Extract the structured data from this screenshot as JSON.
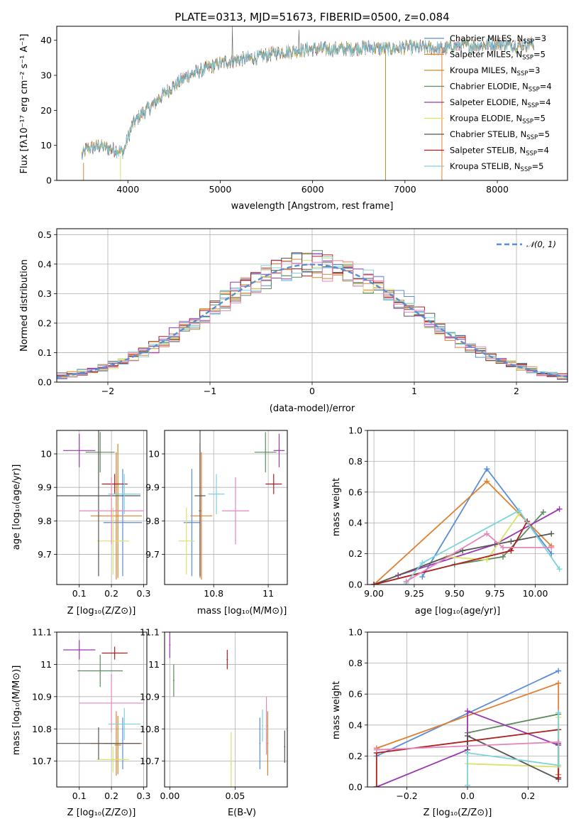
{
  "colors": [
    "#5B8DD6",
    "#E07F30",
    "#C48A2C",
    "#5D8A5E",
    "#9A36B0",
    "#D9E36A",
    "#555555",
    "#B01E1E",
    "#7ED3DB",
    "#E387BB"
  ],
  "chart_data": [
    {
      "type": "line",
      "title": "PLATE=0313, MJD=51673, FIBERID=0500, z=0.084",
      "xlabel": "wavelength [Angstrom, rest frame]",
      "ylabel": "Flux [fλ10⁻¹⁷ erg cm⁻² s⁻¹ A⁻¹]",
      "xlim": [
        3230,
        8760
      ],
      "ylim": [
        0,
        44
      ],
      "xticks": [
        4000,
        5000,
        6000,
        7000,
        8000
      ],
      "yticks": [
        0,
        10,
        20,
        30,
        40
      ],
      "continuum": {
        "x": [
          3500,
          3550,
          3700,
          3800,
          3900,
          3950,
          4050,
          4150,
          4250,
          4400,
          4500,
          4650,
          4800,
          5000,
          5200,
          5400,
          5600,
          5800,
          6000,
          6200,
          6400,
          6600,
          6800,
          7000,
          7200,
          7400,
          7600,
          7800,
          8000,
          8200,
          8400
        ],
        "y": [
          7,
          9,
          10,
          9,
          8.5,
          8,
          16,
          19,
          21,
          25,
          27,
          30,
          31.5,
          33.5,
          34.5,
          35,
          36.5,
          37,
          37.5,
          37.5,
          37.5,
          38,
          37.5,
          38,
          38,
          37.5,
          38.5,
          38.5,
          39,
          38.5,
          39
        ]
      },
      "legend_position": "top-right",
      "series": [
        {
          "name": "Chabrier MILES, N",
          "sub": "SSP",
          "suffix": "=3",
          "color": "#5B8DD6"
        },
        {
          "name": "Salpeter MILES, N",
          "sub": "SSP",
          "suffix": "=5",
          "color": "#E07F30"
        },
        {
          "name": "Kroupa MILES, N",
          "sub": "SSP",
          "suffix": "=3",
          "color": "#C48A2C"
        },
        {
          "name": "Chabrier ELODIE, N",
          "sub": "SSP",
          "suffix": "=4",
          "color": "#5D8A5E"
        },
        {
          "name": "Salpeter ELODIE, N",
          "sub": "SSP",
          "suffix": "=4",
          "color": "#9A36B0"
        },
        {
          "name": "Kroupa ELODIE, N",
          "sub": "SSP",
          "suffix": "=5",
          "color": "#D9E36A"
        },
        {
          "name": "Chabrier STELIB, N",
          "sub": "SSP",
          "suffix": "=5",
          "color": "#555555"
        },
        {
          "name": "Salpeter STELIB, N",
          "sub": "SSP",
          "suffix": "=4",
          "color": "#B01E1E"
        },
        {
          "name": "Kroupa STELIB, N",
          "sub": "SSP",
          "suffix": "=5",
          "color": "#7ED3DB"
        }
      ]
    },
    {
      "type": "histogram",
      "xlabel": "(data-model)/error",
      "ylabel": "Normed distribution",
      "xlim": [
        -2.5,
        2.5
      ],
      "ylim": [
        0,
        0.52
      ],
      "xticks": [
        -2,
        -1,
        0,
        1,
        2
      ],
      "yticks": [
        0.0,
        0.1,
        0.2,
        0.3,
        0.4,
        0.5
      ],
      "bin_width": 0.1,
      "gaussian_label": "𝒩(0, 1)",
      "gaussian_color": "#5B8DD6",
      "legend_position": "top-right"
    },
    {
      "type": "scatter",
      "name": "age-vs-Z",
      "xlabel": "Z [log₁₀(Z/Z⊙)]",
      "ylabel": "age  [log₁₀(age/yr)]",
      "xlim": [
        0.03,
        0.31
      ],
      "ylim": [
        9.61,
        10.07
      ],
      "xticks": [
        0.1,
        0.2,
        0.3
      ],
      "yticks": [
        9.7,
        9.8,
        9.9,
        10.0
      ],
      "points": [
        {
          "x": 0.235,
          "y": 9.795,
          "xerr": 0.06,
          "yerr": 0.16,
          "color": "#5B8DD6"
        },
        {
          "x": 0.215,
          "y": 9.815,
          "xerr": 0.08,
          "yerr": 0.19,
          "color": "#E07F30"
        },
        {
          "x": 0.22,
          "y": 9.83,
          "xerr": 0.01,
          "yerr": 0.2,
          "color": "#C48A2C"
        },
        {
          "x": 0.165,
          "y": 10.005,
          "xerr": 0.045,
          "yerr": 0.06,
          "color": "#5D8A5E"
        },
        {
          "x": 0.1,
          "y": 10.01,
          "xerr": 0.05,
          "yerr": 0.05,
          "color": "#9A36B0"
        },
        {
          "x": 0.205,
          "y": 9.74,
          "xerr": 0.05,
          "yerr": 0.1,
          "color": "#D9E36A"
        },
        {
          "x": 0.16,
          "y": 9.875,
          "xerr": 0.13,
          "yerr": 0.24,
          "color": "#555555"
        },
        {
          "x": 0.21,
          "y": 9.91,
          "xerr": 0.04,
          "yerr": 0.03,
          "color": "#B01E1E"
        },
        {
          "x": 0.24,
          "y": 9.88,
          "xerr": 0.05,
          "yerr": 0.06,
          "color": "#7ED3DB"
        },
        {
          "x": 0.2,
          "y": 9.83,
          "xerr": 0.1,
          "yerr": 0.1,
          "color": "#E387BB"
        }
      ]
    },
    {
      "type": "scatter",
      "name": "age-vs-mass",
      "xlabel": "mass [log₁₀(M/M⊙)]",
      "ylabel": "",
      "xlim": [
        10.62,
        11.07
      ],
      "ylim": [
        9.61,
        10.07
      ],
      "xticks": [
        10.8,
        11.0
      ],
      "yticks": [
        9.7,
        9.8,
        9.9,
        10.0
      ],
      "points": [
        {
          "x": 10.72,
          "y": 9.795,
          "xerr": 0.03,
          "yerr": 0.16,
          "color": "#5B8DD6"
        },
        {
          "x": 10.755,
          "y": 9.815,
          "xerr": 0.04,
          "yerr": 0.19,
          "color": "#E07F30"
        },
        {
          "x": 10.75,
          "y": 9.83,
          "xerr": 0.005,
          "yerr": 0.2,
          "color": "#C48A2C"
        },
        {
          "x": 10.99,
          "y": 10.005,
          "xerr": 0.04,
          "yerr": 0.06,
          "color": "#5D8A5E"
        },
        {
          "x": 11.04,
          "y": 10.01,
          "xerr": 0.02,
          "yerr": 0.05,
          "color": "#9A36B0"
        },
        {
          "x": 10.7,
          "y": 9.74,
          "xerr": 0.03,
          "yerr": 0.1,
          "color": "#D9E36A"
        },
        {
          "x": 10.75,
          "y": 9.875,
          "xerr": 0.02,
          "yerr": 0.24,
          "color": "#555555"
        },
        {
          "x": 11.02,
          "y": 9.91,
          "xerr": 0.03,
          "yerr": 0.03,
          "color": "#B01E1E"
        },
        {
          "x": 10.81,
          "y": 9.88,
          "xerr": 0.03,
          "yerr": 0.06,
          "color": "#7ED3DB"
        },
        {
          "x": 10.88,
          "y": 9.83,
          "xerr": 0.05,
          "yerr": 0.1,
          "color": "#E387BB"
        }
      ]
    },
    {
      "type": "line",
      "name": "mass-weight-vs-age",
      "xlabel": "age  [log₁₀(age/yr)]",
      "ylabel": "mass weight",
      "xlim": [
        8.96,
        10.2
      ],
      "ylim": [
        0,
        1
      ],
      "xticks": [
        9.0,
        9.25,
        9.5,
        9.75,
        10.0
      ],
      "xtick_labels": [
        "9.00",
        "9.25",
        "9.50",
        "9.75",
        "10.00"
      ],
      "yticks": [
        0.0,
        0.2,
        0.4,
        0.6,
        0.8,
        1.0
      ],
      "series": [
        {
          "color": "#5B8DD6",
          "x": [
            9.3,
            9.7,
            10.1
          ],
          "y": [
            0.05,
            0.75,
            0.2
          ]
        },
        {
          "color": "#E07F30",
          "x": [
            9.0,
            9.7,
            10.1
          ],
          "y": [
            0.0,
            0.67,
            0.25
          ]
        },
        {
          "color": "#5D8A5E",
          "x": [
            9.0,
            9.5,
            9.8,
            10.05
          ],
          "y": [
            0.0,
            0.13,
            0.18,
            0.47
          ]
        },
        {
          "color": "#9A36B0",
          "x": [
            9.15,
            9.75,
            10.15
          ],
          "y": [
            0.06,
            0.26,
            0.49
          ]
        },
        {
          "color": "#D9E36A",
          "x": [
            9.0,
            9.45,
            9.7,
            9.9
          ],
          "y": [
            0.0,
            0.18,
            0.16,
            0.46
          ]
        },
        {
          "color": "#555555",
          "x": [
            9.0,
            9.55,
            9.85,
            10.1
          ],
          "y": [
            0.0,
            0.22,
            0.28,
            0.33
          ]
        },
        {
          "color": "#B01E1E",
          "x": [
            9.0,
            9.85,
            9.95
          ],
          "y": [
            0.0,
            0.22,
            0.41
          ]
        },
        {
          "color": "#7ED3DB",
          "x": [
            9.2,
            9.3,
            9.9,
            10.15
          ],
          "y": [
            0.01,
            0.14,
            0.48,
            0.1
          ]
        },
        {
          "color": "#E387BB",
          "x": [
            9.2,
            9.7,
            9.8,
            10.1
          ],
          "y": [
            0.02,
            0.33,
            0.24,
            0.24
          ]
        }
      ]
    },
    {
      "type": "scatter",
      "name": "mass-vs-Z",
      "xlabel": "Z [log₁₀(Z/Z⊙)]",
      "ylabel": "mass [log₁₀(M/M⊙)]",
      "xlim": [
        0.03,
        0.31
      ],
      "ylim": [
        10.62,
        11.1
      ],
      "xticks": [
        0.1,
        0.2,
        0.3
      ],
      "yticks": [
        10.7,
        10.8,
        10.9,
        11.0,
        11.1
      ],
      "points": [
        {
          "x": 0.235,
          "y": 10.755,
          "xerr": 0.06,
          "yerr": 0.08,
          "color": "#5B8DD6"
        },
        {
          "x": 0.215,
          "y": 10.755,
          "xerr": 0.08,
          "yerr": 0.1,
          "color": "#E07F30"
        },
        {
          "x": 0.22,
          "y": 10.75,
          "xerr": 0.01,
          "yerr": 0.09,
          "color": "#C48A2C"
        },
        {
          "x": 0.165,
          "y": 10.98,
          "xerr": 0.07,
          "yerr": 0.05,
          "color": "#5D8A5E"
        },
        {
          "x": 0.1,
          "y": 11.045,
          "xerr": 0.05,
          "yerr": 0.03,
          "color": "#9A36B0"
        },
        {
          "x": 0.205,
          "y": 10.705,
          "xerr": 0.05,
          "yerr": 0.04,
          "color": "#D9E36A"
        },
        {
          "x": 0.16,
          "y": 10.755,
          "xerr": 0.13,
          "yerr": 0.05,
          "color": "#555555"
        },
        {
          "x": 0.21,
          "y": 11.035,
          "xerr": 0.04,
          "yerr": 0.02,
          "color": "#B01E1E"
        },
        {
          "x": 0.24,
          "y": 10.815,
          "xerr": 0.05,
          "yerr": 0.05,
          "color": "#7ED3DB"
        },
        {
          "x": 0.2,
          "y": 10.88,
          "xerr": 0.1,
          "yerr": 0.09,
          "color": "#E387BB"
        }
      ]
    },
    {
      "type": "scatter",
      "name": "mass-vs-EBV",
      "xlabel": "E(B-V)",
      "ylabel": "",
      "xlim": [
        -0.004,
        0.09
      ],
      "ylim": [
        10.62,
        11.1
      ],
      "xticks": [
        0.0,
        0.05
      ],
      "xtick_labels": [
        "0.00",
        "0.05"
      ],
      "yticks": [
        10.7,
        10.8,
        10.9,
        11.0,
        11.1
      ],
      "points": [
        {
          "x": 0.069,
          "y": 10.755,
          "xerr": 0.0005,
          "yerr": 0.08,
          "color": "#5B8DD6"
        },
        {
          "x": 0.075,
          "y": 10.755,
          "xerr": 0.0005,
          "yerr": 0.1,
          "color": "#E07F30"
        },
        {
          "x": 0.003,
          "y": 10.95,
          "xerr": 0.0005,
          "yerr": 0.05,
          "color": "#5D8A5E"
        },
        {
          "x": 0.0,
          "y": 11.06,
          "xerr": 0.0005,
          "yerr": 0.04,
          "color": "#9A36B0"
        },
        {
          "x": 0.047,
          "y": 10.69,
          "xerr": 0.0005,
          "yerr": 0.1,
          "color": "#D9E36A"
        },
        {
          "x": 0.088,
          "y": 10.745,
          "xerr": 0.0005,
          "yerr": 0.05,
          "color": "#555555"
        },
        {
          "x": 0.044,
          "y": 11.015,
          "xerr": 0.0005,
          "yerr": 0.03,
          "color": "#B01E1E"
        },
        {
          "x": 0.071,
          "y": 10.81,
          "xerr": 0.0005,
          "yerr": 0.05,
          "color": "#7ED3DB"
        },
        {
          "x": 0.074,
          "y": 10.81,
          "xerr": 0.0005,
          "yerr": 0.09,
          "color": "#E387BB"
        }
      ]
    },
    {
      "type": "line",
      "name": "mass-weight-vs-Z",
      "xlabel": "Z [log₁₀(Z/Z⊙)]",
      "ylabel": "mass weight",
      "xlim": [
        -0.33,
        0.33
      ],
      "ylim": [
        0,
        1
      ],
      "xticks": [
        -0.2,
        0.0,
        0.2
      ],
      "xtick_labels": [
        "−0.2",
        "0.0",
        "0.2"
      ],
      "yticks": [
        0.0,
        0.2,
        0.4,
        0.6,
        0.8,
        1.0
      ],
      "series": [
        {
          "color": "#5B8DD6",
          "x": [
            -0.3,
            0.3
          ],
          "y": [
            0.2,
            0.75
          ]
        },
        {
          "color": "#E07F30",
          "x": [
            -0.3,
            0.3,
            0.3
          ],
          "y": [
            0.25,
            0.67,
            0.08
          ]
        },
        {
          "color": "#5D8A5E",
          "x": [
            0.0,
            0.3
          ],
          "y": [
            0.35,
            0.47
          ]
        },
        {
          "color": "#9A36B0",
          "x": [
            -0.3,
            0.0,
            0.0,
            0.3
          ],
          "y": [
            0.0,
            0.24,
            0.49,
            0.27
          ]
        },
        {
          "color": "#D9E36A",
          "x": [
            0.0,
            0.3,
            0.3
          ],
          "y": [
            0.15,
            0.13,
            0.45
          ]
        },
        {
          "color": "#555555",
          "x": [
            0.0,
            0.0,
            0.3,
            0.3
          ],
          "y": [
            0.22,
            0.33,
            0.05,
            0.28
          ]
        },
        {
          "color": "#B01E1E",
          "x": [
            -0.3,
            -0.3,
            0.3,
            0.3
          ],
          "y": [
            0.0,
            0.22,
            0.37,
            0.06
          ]
        },
        {
          "color": "#7ED3DB",
          "x": [
            0.0,
            0.0,
            0.3,
            0.3
          ],
          "y": [
            0.01,
            0.22,
            0.14,
            0.48
          ]
        },
        {
          "color": "#E387BB",
          "x": [
            -0.3,
            0.3
          ],
          "y": [
            0.24,
            0.29
          ]
        }
      ]
    }
  ]
}
